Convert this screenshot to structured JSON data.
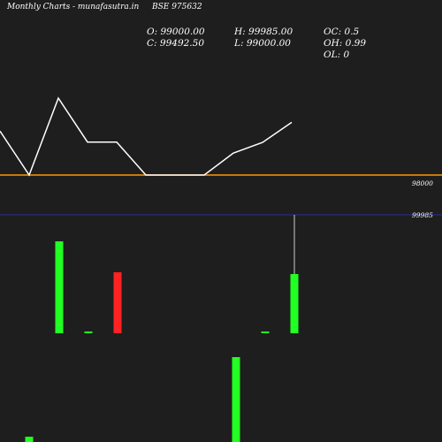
{
  "header": {
    "title": "Monthly Charts",
    "site": "- munafasutra.in",
    "symbol": "BSE 975632"
  },
  "ohlc": {
    "open": "O: 99000.00",
    "close": "C: 99492.50",
    "high": "H: 99985.00",
    "low": "L: 99000.00",
    "oc": "OC: 0.5",
    "oh": "OH: 0.99",
    "ol": "OL: 0"
  },
  "colors": {
    "background": "#1e1e1e",
    "price_line": "#ffffff",
    "support_line": "#ff9900",
    "ref_line": "#2a2aa8",
    "up": "#22ff22",
    "down": "#ff2222",
    "text": "#ffffff"
  },
  "chart_data": [
    {
      "type": "line",
      "name": "price",
      "values": [
        100000,
        98000,
        101500,
        99500,
        99500,
        98000,
        98000,
        98000,
        99000,
        99485,
        100400
      ],
      "reference_line": {
        "value": 98000,
        "label": "98000"
      }
    },
    {
      "type": "bar",
      "name": "candles",
      "ref_label": "99985",
      "candles": [
        {
          "i": 1,
          "color": "up",
          "open": 99000,
          "close": 99000,
          "high": 99000,
          "low": 99000,
          "kind": "tick"
        },
        {
          "i": 2,
          "color": "up",
          "size": 100
        },
        {
          "i": 3,
          "color": "up",
          "open": 99000,
          "close": 99000,
          "kind": "tick"
        },
        {
          "i": 4,
          "color": "down",
          "size": 67
        },
        {
          "i": 8,
          "color": "up",
          "size": 93
        },
        {
          "i": 9,
          "color": "up",
          "open": 99000,
          "close": 99000,
          "kind": "tick"
        },
        {
          "i": 10,
          "color": "up",
          "open": 99000,
          "close": 99492.5,
          "high": 99985,
          "low": 99000
        }
      ]
    }
  ]
}
